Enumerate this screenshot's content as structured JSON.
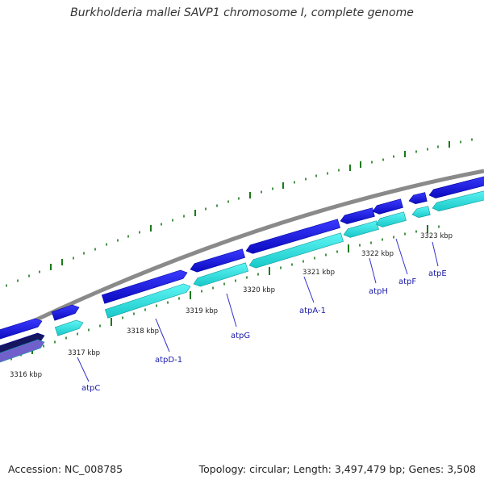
{
  "title": "Burkholderia mallei SAVP1 chromosome I, complete genome",
  "footer": {
    "accession": "Accession: NC_008785",
    "summary": "Topology: circular; Length: 3,497,479 bp; Genes: 3,508"
  },
  "colors": {
    "backbone": "#8a8a8a",
    "gene_forward": "#1212e6",
    "cds_forward": "#26e6e6",
    "tick": "#1a7a1a",
    "label_line": "#3333cc",
    "label_text": "#1a1aaa",
    "gene_dark": "#161660",
    "cds_dark": "#7060cc"
  },
  "kbp_labels": [
    "3316 kbp",
    "3317 kbp",
    "3318 kbp",
    "3319 kbp",
    "3320 kbp",
    "3321 kbp",
    "3322 kbp",
    "3323 kbp"
  ],
  "genes": [
    "atpC",
    "atpD-1",
    "atpG",
    "atpA-1",
    "atpH",
    "atpF",
    "atpE"
  ]
}
